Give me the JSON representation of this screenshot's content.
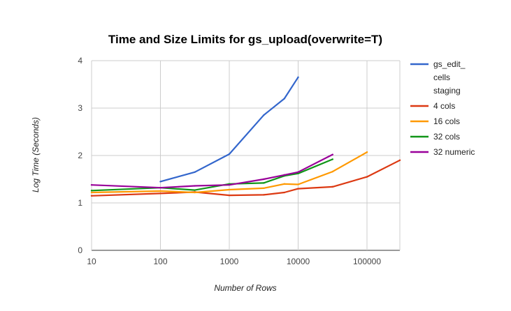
{
  "chart_data": {
    "type": "line",
    "title": "Time and Size Limits for gs_upload(overwrite=T)",
    "xlabel": "Number of Rows",
    "ylabel": "Log Time (Seconds)",
    "x_scale": "log10",
    "xlim": [
      10,
      300000
    ],
    "ylim": [
      0,
      4
    ],
    "x_ticks": [
      {
        "value": 10,
        "label": "10"
      },
      {
        "value": 100,
        "label": "100"
      },
      {
        "value": 1000,
        "label": "1000"
      },
      {
        "value": 10000,
        "label": "10000"
      },
      {
        "value": 100000,
        "label": "100000"
      }
    ],
    "y_ticks": [
      {
        "value": 0,
        "label": "0"
      },
      {
        "value": 1,
        "label": "1"
      },
      {
        "value": 2,
        "label": "2"
      },
      {
        "value": 3,
        "label": "3"
      },
      {
        "value": 4,
        "label": "4"
      }
    ],
    "grid": true,
    "legend_position": "right",
    "series": [
      {
        "name": "gs_edit_ cells staging",
        "legend_lines": [
          "gs_edit_",
          "cells",
          "staging"
        ],
        "color": "#3366cc",
        "points": [
          [
            100,
            1.45
          ],
          [
            316,
            1.65
          ],
          [
            1000,
            2.03
          ],
          [
            3162,
            2.85
          ],
          [
            6310,
            3.2
          ],
          [
            10000,
            3.65
          ]
        ]
      },
      {
        "name": "4 cols",
        "legend_lines": [
          "4 cols"
        ],
        "color": "#dc3912",
        "points": [
          [
            10,
            1.15
          ],
          [
            100,
            1.2
          ],
          [
            316,
            1.23
          ],
          [
            1000,
            1.16
          ],
          [
            3162,
            1.17
          ],
          [
            6310,
            1.22
          ],
          [
            10000,
            1.3
          ],
          [
            31623,
            1.34
          ],
          [
            100000,
            1.55
          ],
          [
            300000,
            1.9
          ]
        ]
      },
      {
        "name": "16 cols",
        "legend_lines": [
          "16 cols"
        ],
        "color": "#ff9900",
        "points": [
          [
            10,
            1.22
          ],
          [
            100,
            1.25
          ],
          [
            316,
            1.22
          ],
          [
            1000,
            1.28
          ],
          [
            3162,
            1.31
          ],
          [
            6310,
            1.4
          ],
          [
            10000,
            1.39
          ],
          [
            31623,
            1.66
          ],
          [
            100000,
            2.07
          ]
        ]
      },
      {
        "name": "32 cols",
        "legend_lines": [
          "32 cols"
        ],
        "color": "#109618",
        "points": [
          [
            10,
            1.26
          ],
          [
            100,
            1.32
          ],
          [
            316,
            1.27
          ],
          [
            1000,
            1.4
          ],
          [
            3162,
            1.42
          ],
          [
            6310,
            1.57
          ],
          [
            10000,
            1.62
          ],
          [
            31623,
            1.92
          ]
        ]
      },
      {
        "name": "32 numeric",
        "legend_lines": [
          "32 numeric"
        ],
        "color": "#990099",
        "points": [
          [
            10,
            1.38
          ],
          [
            100,
            1.32
          ],
          [
            316,
            1.36
          ],
          [
            1000,
            1.38
          ],
          [
            3162,
            1.5
          ],
          [
            6310,
            1.59
          ],
          [
            10000,
            1.65
          ],
          [
            31623,
            2.02
          ]
        ]
      }
    ]
  }
}
